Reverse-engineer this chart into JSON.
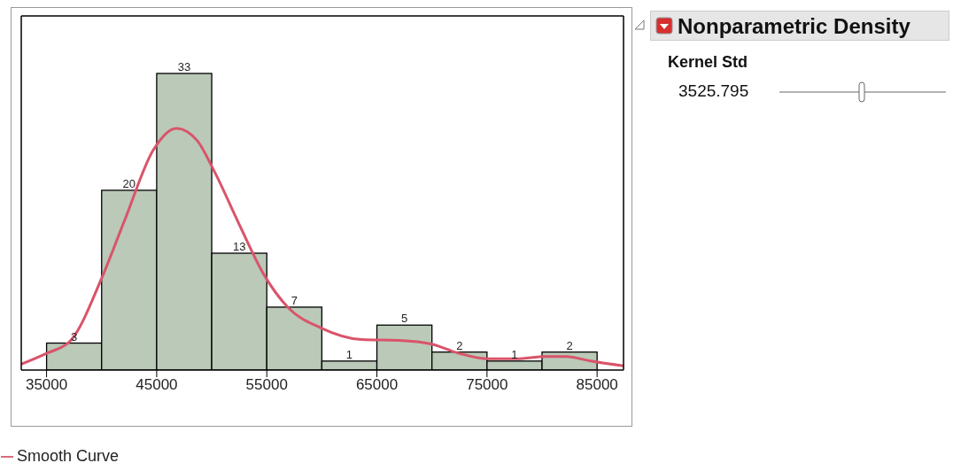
{
  "chart_data": [
    {
      "type": "histogram",
      "bins": [
        35000,
        40000,
        45000,
        50000,
        55000,
        60000,
        65000,
        70000,
        75000,
        80000,
        85000
      ],
      "values": [
        3,
        20,
        33,
        13,
        7,
        1,
        5,
        2,
        1,
        2
      ],
      "value_labels": [
        "3",
        "20",
        "33",
        "13",
        "7",
        "1",
        "5",
        "2",
        "1",
        "2"
      ],
      "color": "#bac9b8",
      "xlim": [
        32700,
        87400
      ],
      "xticks": [
        35000,
        45000,
        55000,
        65000,
        75000,
        85000
      ],
      "ylim": [
        0,
        39.4
      ],
      "tick_labels": "x",
      "legend": "bottom",
      "series": [
        {
          "type": "line",
          "name": "Smooth Curve",
          "color": "#d9546a",
          "x": [
            32700,
            35000,
            37200,
            40000,
            42100,
            44700,
            46800,
            48700,
            50200,
            52500,
            54700,
            56900,
            59900,
            63600,
            67000,
            69900,
            72500,
            75100,
            77700,
            80300,
            82200,
            84400,
            87400
          ],
          "values": [
            0.65,
            1.85,
            3.3,
            10.2,
            16.7,
            24.5,
            26.9,
            25.5,
            22.2,
            16.2,
            10.7,
            7.0,
            4.7,
            3.4,
            3.3,
            2.9,
            1.85,
            1.25,
            1.25,
            1.5,
            1.5,
            1.0,
            0.46
          ]
        }
      ]
    },
    {
      "type": "other",
      "title": "Nonparametric Density",
      "annotations": [
        "Kernel Std",
        "3525.795"
      ]
    }
  ]
}
